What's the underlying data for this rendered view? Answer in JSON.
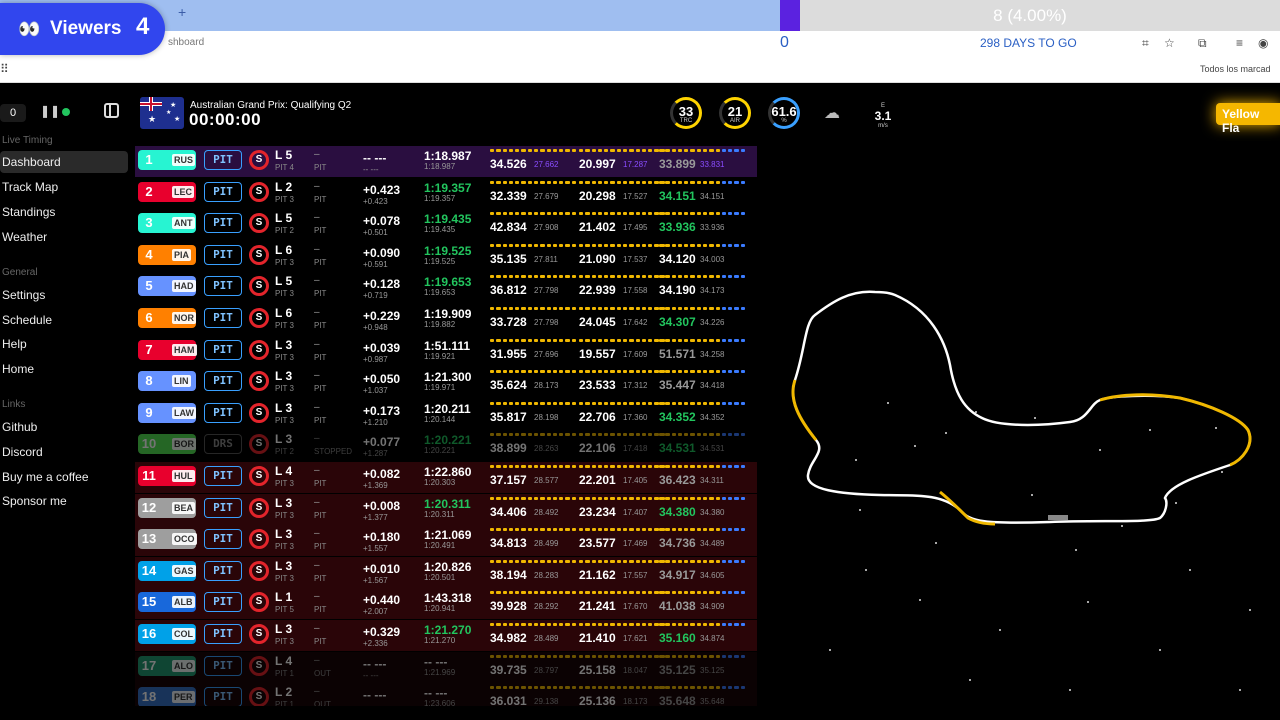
{
  "browser": {
    "progress_text": "8 (4.00%)",
    "progress_fraction": 0.04,
    "address_fragment": "shboard",
    "counter_zero": "0",
    "days_to_go": "298 DAYS TO GO",
    "bookmarks_all": "Todos los marcad"
  },
  "viewers": {
    "label": "Viewers",
    "count": "4"
  },
  "sidebar": {
    "delay": "0",
    "live_timing_label": "Live Timing",
    "live_items": [
      "Dashboard",
      "Track Map",
      "Standings",
      "Weather"
    ],
    "general_label": "General",
    "general_items": [
      "Settings",
      "Schedule",
      "Help",
      "Home"
    ],
    "links_label": "Links",
    "link_items": [
      "Github",
      "Discord",
      "Buy me a coffee",
      "Sponsor me"
    ]
  },
  "header": {
    "event": "Australian Grand Prix: Qualifying Q2",
    "clock": "00:00:00",
    "gauges": [
      {
        "value": "33",
        "label": "TRC",
        "color": "#ffd400"
      },
      {
        "value": "21",
        "label": "AIR",
        "color": "#ffd400"
      },
      {
        "value": "61.6",
        "label": "%",
        "color": "#3aa0ff"
      }
    ],
    "wind": {
      "value": "3.1",
      "unit": "m/s",
      "dir": "E"
    },
    "flag_alert": "Yellow Fla"
  },
  "rows": [
    {
      "pos": "1",
      "code": "RUS",
      "color": "#27f4d2",
      "lap": "L 5",
      "pits": "PIT 4",
      "s1": "–",
      "s2": "PIT",
      "gap": "-- ---",
      "gap2": "-- ---",
      "best": "1:18.987",
      "last": "1:18.987",
      "bestColor": "#ffffff",
      "sec": [
        [
          "34.526",
          "27.662",
          "#ffffff",
          "#8a4dff"
        ],
        [
          "20.997",
          "17.287",
          "#ffffff",
          "#8a4dff"
        ],
        [
          "33.899",
          "33.831",
          "#999",
          "#8a4dff"
        ]
      ],
      "bg": "#2a0e40"
    },
    {
      "pos": "2",
      "code": "LEC",
      "color": "#e8002d",
      "lap": "L 2",
      "pits": "PIT 3",
      "s1": "–",
      "s2": "PIT",
      "gap": "+0.423",
      "gap2": "+0.423",
      "best": "1:19.357",
      "last": "1:19.357",
      "bestColor": "#22c55e",
      "sec": [
        [
          "32.339",
          "27.679",
          "#ffffff",
          "#999"
        ],
        [
          "20.298",
          "17.527",
          "#ffffff",
          "#999"
        ],
        [
          "34.151",
          "34.151",
          "#22c55e",
          "#999"
        ]
      ],
      "bg": "#000"
    },
    {
      "pos": "3",
      "code": "ANT",
      "color": "#27f4d2",
      "lap": "L 5",
      "pits": "PIT 2",
      "s1": "–",
      "s2": "PIT",
      "gap": "+0.078",
      "gap2": "+0.501",
      "best": "1:19.435",
      "last": "1:19.435",
      "bestColor": "#22c55e",
      "sec": [
        [
          "42.834",
          "27.908",
          "#ffffff",
          "#999"
        ],
        [
          "21.402",
          "17.495",
          "#ffffff",
          "#999"
        ],
        [
          "33.936",
          "33.936",
          "#22c55e",
          "#999"
        ]
      ],
      "bg": "#000"
    },
    {
      "pos": "4",
      "code": "PIA",
      "color": "#ff8000",
      "lap": "L 6",
      "pits": "PIT 3",
      "s1": "–",
      "s2": "PIT",
      "gap": "+0.090",
      "gap2": "+0.591",
      "best": "1:19.525",
      "last": "1:19.525",
      "bestColor": "#22c55e",
      "sec": [
        [
          "35.135",
          "27.811",
          "#ffffff",
          "#999"
        ],
        [
          "21.090",
          "17.537",
          "#ffffff",
          "#999"
        ],
        [
          "34.120",
          "34.003",
          "#ffffff",
          "#999"
        ]
      ],
      "bg": "#000"
    },
    {
      "pos": "5",
      "code": "HAD",
      "color": "#6692ff",
      "lap": "L 5",
      "pits": "PIT 3",
      "s1": "–",
      "s2": "PIT",
      "gap": "+0.128",
      "gap2": "+0.719",
      "best": "1:19.653",
      "last": "1:19.653",
      "bestColor": "#22c55e",
      "sec": [
        [
          "36.812",
          "27.798",
          "#ffffff",
          "#999"
        ],
        [
          "22.939",
          "17.558",
          "#ffffff",
          "#999"
        ],
        [
          "34.190",
          "34.173",
          "#ffffff",
          "#999"
        ]
      ],
      "bg": "#000"
    },
    {
      "pos": "6",
      "code": "NOR",
      "color": "#ff8000",
      "lap": "L 6",
      "pits": "PIT 3",
      "s1": "–",
      "s2": "PIT",
      "gap": "+0.229",
      "gap2": "+0.948",
      "best": "1:19.909",
      "last": "1:19.882",
      "bestColor": "#ffffff",
      "sec": [
        [
          "33.728",
          "27.798",
          "#ffffff",
          "#999"
        ],
        [
          "24.045",
          "17.642",
          "#ffffff",
          "#999"
        ],
        [
          "34.307",
          "34.226",
          "#22c55e",
          "#999"
        ]
      ],
      "bg": "#000"
    },
    {
      "pos": "7",
      "code": "HAM",
      "color": "#e8002d",
      "lap": "L 3",
      "pits": "PIT 3",
      "s1": "–",
      "s2": "PIT",
      "gap": "+0.039",
      "gap2": "+0.987",
      "best": "1:51.111",
      "last": "1:19.921",
      "bestColor": "#ffffff",
      "sec": [
        [
          "31.955",
          "27.696",
          "#ffffff",
          "#999"
        ],
        [
          "19.557",
          "17.609",
          "#ffffff",
          "#999"
        ],
        [
          "51.571",
          "34.258",
          "#999",
          "#999"
        ]
      ],
      "bg": "#000"
    },
    {
      "pos": "8",
      "code": "LIN",
      "color": "#6692ff",
      "lap": "L 3",
      "pits": "PIT 3",
      "s1": "–",
      "s2": "PIT",
      "gap": "+0.050",
      "gap2": "+1.037",
      "best": "1:21.300",
      "last": "1:19.971",
      "bestColor": "#ffffff",
      "sec": [
        [
          "35.624",
          "28.173",
          "#ffffff",
          "#999"
        ],
        [
          "23.533",
          "17.312",
          "#ffffff",
          "#999"
        ],
        [
          "35.447",
          "34.418",
          "#999",
          "#999"
        ]
      ],
      "bg": "#000"
    },
    {
      "pos": "9",
      "code": "LAW",
      "color": "#6692ff",
      "lap": "L 3",
      "pits": "PIT 3",
      "s1": "–",
      "s2": "PIT",
      "gap": "+0.173",
      "gap2": "+1.210",
      "best": "1:20.211",
      "last": "1:20.144",
      "bestColor": "#ffffff",
      "sec": [
        [
          "35.817",
          "28.198",
          "#ffffff",
          "#999"
        ],
        [
          "22.706",
          "17.360",
          "#ffffff",
          "#999"
        ],
        [
          "34.352",
          "34.352",
          "#22c55e",
          "#999"
        ]
      ],
      "bg": "#000"
    },
    {
      "pos": "10",
      "code": "BOR",
      "color": "#52e252",
      "lap": "L 3",
      "pits": "PIT 2",
      "s1": "–",
      "s2": "STOPPED",
      "gap": "+0.077",
      "gap2": "+1.287",
      "best": "1:20.221",
      "last": "1:20.221",
      "bestColor": "#22c55e",
      "sec": [
        [
          "38.899",
          "28.263",
          "#ffffff",
          "#999"
        ],
        [
          "22.106",
          "17.418",
          "#ffffff",
          "#999"
        ],
        [
          "34.531",
          "34.531",
          "#22c55e",
          "#999"
        ]
      ],
      "bg": "#000",
      "dim": true,
      "pitLabel": "DRS"
    },
    {
      "pos": "11",
      "code": "HUL",
      "color": "#e8002d",
      "lap": "L 4",
      "pits": "PIT 3",
      "s1": "–",
      "s2": "PIT",
      "gap": "+0.082",
      "gap2": "+1.369",
      "best": "1:22.860",
      "last": "1:20.303",
      "bestColor": "#ffffff",
      "sec": [
        [
          "37.157",
          "28.577",
          "#ffffff",
          "#999"
        ],
        [
          "22.201",
          "17.405",
          "#ffffff",
          "#999"
        ],
        [
          "36.423",
          "34.311",
          "#999",
          "#999"
        ]
      ],
      "bg": "#2a0508"
    },
    {
      "pos": "12",
      "code": "BEA",
      "color": "#9e9e9e",
      "lap": "L 3",
      "pits": "PIT 3",
      "s1": "–",
      "s2": "PIT",
      "gap": "+0.008",
      "gap2": "+1.377",
      "best": "1:20.311",
      "last": "1:20.311",
      "bestColor": "#22c55e",
      "sec": [
        [
          "34.406",
          "28.492",
          "#ffffff",
          "#999"
        ],
        [
          "23.234",
          "17.407",
          "#ffffff",
          "#999"
        ],
        [
          "34.380",
          "34.380",
          "#22c55e",
          "#999"
        ]
      ],
      "bg": "#2a0508"
    },
    {
      "pos": "13",
      "code": "OCO",
      "color": "#9e9e9e",
      "lap": "L 3",
      "pits": "PIT 3",
      "s1": "–",
      "s2": "PIT",
      "gap": "+0.180",
      "gap2": "+1.557",
      "best": "1:21.069",
      "last": "1:20.491",
      "bestColor": "#ffffff",
      "sec": [
        [
          "34.813",
          "28.499",
          "#ffffff",
          "#999"
        ],
        [
          "23.577",
          "17.469",
          "#ffffff",
          "#999"
        ],
        [
          "34.736",
          "34.489",
          "#999",
          "#999"
        ]
      ],
      "bg": "#2a0508"
    },
    {
      "pos": "14",
      "code": "GAS",
      "color": "#00a1e8",
      "lap": "L 3",
      "pits": "PIT 3",
      "s1": "–",
      "s2": "PIT",
      "gap": "+0.010",
      "gap2": "+1.567",
      "best": "1:20.826",
      "last": "1:20.501",
      "bestColor": "#ffffff",
      "sec": [
        [
          "38.194",
          "28.283",
          "#ffffff",
          "#999"
        ],
        [
          "21.162",
          "17.557",
          "#ffffff",
          "#999"
        ],
        [
          "34.917",
          "34.605",
          "#999",
          "#999"
        ]
      ],
      "bg": "#2a0508"
    },
    {
      "pos": "15",
      "code": "ALB",
      "color": "#1868db",
      "lap": "L 1",
      "pits": "PIT 5",
      "s1": "–",
      "s2": "PIT",
      "gap": "+0.440",
      "gap2": "+2.007",
      "best": "1:43.318",
      "last": "1:20.941",
      "bestColor": "#ffffff",
      "sec": [
        [
          "39.928",
          "28.292",
          "#ffffff",
          "#999"
        ],
        [
          "21.241",
          "17.670",
          "#ffffff",
          "#999"
        ],
        [
          "41.038",
          "34.909",
          "#999",
          "#999"
        ]
      ],
      "bg": "#2a0508"
    },
    {
      "pos": "16",
      "code": "COL",
      "color": "#00a1e8",
      "lap": "L 3",
      "pits": "PIT 3",
      "s1": "–",
      "s2": "PIT",
      "gap": "+0.329",
      "gap2": "+2.336",
      "best": "1:21.270",
      "last": "1:21.270",
      "bestColor": "#22c55e",
      "sec": [
        [
          "34.982",
          "28.489",
          "#ffffff",
          "#999"
        ],
        [
          "21.410",
          "17.621",
          "#ffffff",
          "#999"
        ],
        [
          "35.160",
          "34.874",
          "#22c55e",
          "#999"
        ]
      ],
      "bg": "#2a0508"
    },
    {
      "pos": "17",
      "code": "ALO",
      "color": "#229971",
      "lap": "L 4",
      "pits": "PIT 1",
      "s1": "–",
      "s2": "OUT",
      "gap": "-- ---",
      "gap2": "-- ---",
      "best": "-- ---",
      "last": "1:21.969",
      "bestColor": "#ffffff",
      "sec": [
        [
          "39.735",
          "28.797",
          "#ffffff",
          "#999"
        ],
        [
          "25.158",
          "18.047",
          "#ffffff",
          "#999"
        ],
        [
          "35.125",
          "35.125",
          "#999",
          "#999"
        ]
      ],
      "bg": "#1a0508",
      "dim": true
    },
    {
      "pos": "18",
      "code": "PER",
      "color": "#3671c6",
      "lap": "L 2",
      "pits": "PIT 1",
      "s1": "–",
      "s2": "OUT",
      "gap": "-- ---",
      "gap2": "-- ---",
      "best": "-- ---",
      "last": "1:23.606",
      "bestColor": "#ffffff",
      "sec": [
        [
          "36.031",
          "29.138",
          "#ffffff",
          "#999"
        ],
        [
          "25.136",
          "18.173",
          "#ffffff",
          "#999"
        ],
        [
          "35.648",
          "35.648",
          "#999",
          "#999"
        ]
      ],
      "bg": "#1a0508",
      "dim": true
    }
  ]
}
